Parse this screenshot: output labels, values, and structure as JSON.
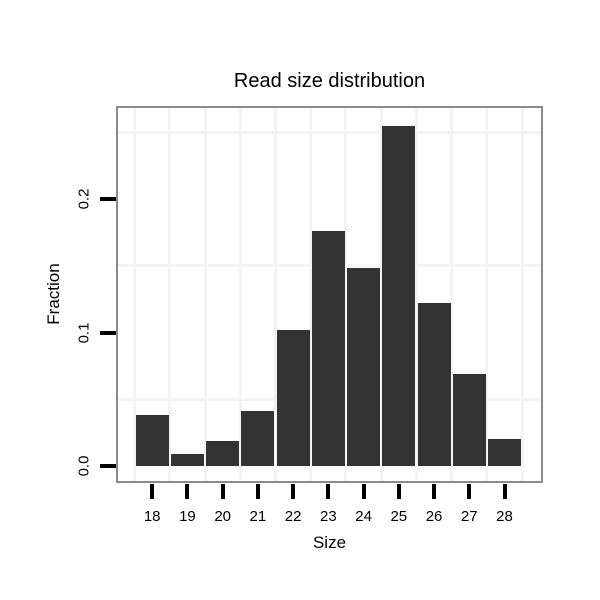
{
  "figure": {
    "background_color": "#ffffff",
    "text_color": "#000000"
  },
  "chart_data": {
    "type": "bar",
    "title": "Read size distribution",
    "xlabel": "Size",
    "ylabel": "Fraction",
    "categories": [
      "18",
      "19",
      "20",
      "21",
      "22",
      "23",
      "24",
      "25",
      "26",
      "27",
      "28"
    ],
    "values": [
      0.038,
      0.009,
      0.019,
      0.041,
      0.102,
      0.176,
      0.148,
      0.255,
      0.122,
      0.069,
      0.02
    ],
    "y_tick_labels": [
      "0.0",
      "0.1",
      "0.2"
    ],
    "y_tick_values": [
      0.0,
      0.1,
      0.2
    ],
    "y_minor_gridline_values": [
      0.05,
      0.15,
      0.25
    ],
    "ylim": [
      0,
      0.269
    ],
    "legend": "none",
    "grid": "minor-only",
    "bar_color": "#333333",
    "panel_border_color": "#8b8b8b",
    "gridline_color": "#f4f4f4",
    "tick_color": "#000000"
  }
}
